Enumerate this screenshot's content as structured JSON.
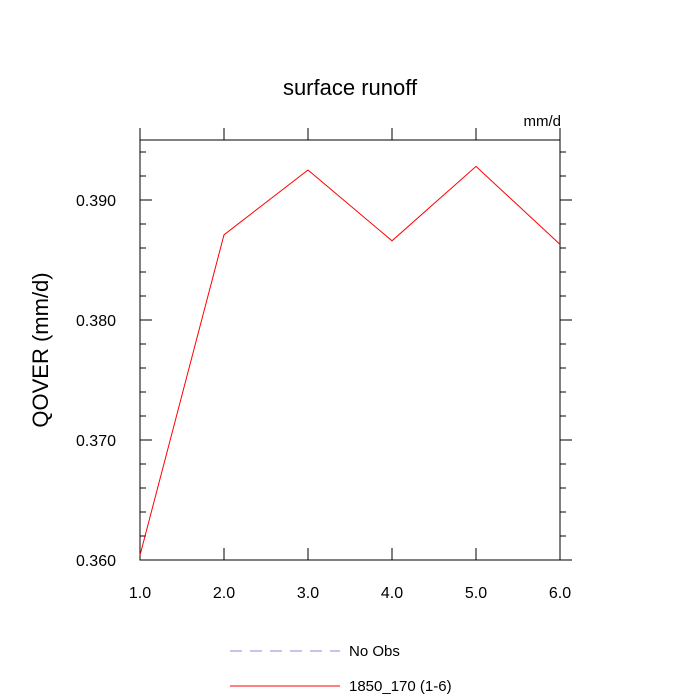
{
  "chart_data": {
    "type": "line",
    "title": "surface runoff",
    "units_label": "mm/d",
    "ylabel": "QOVER  (mm/d)",
    "xlabel": "",
    "xlim": [
      1.0,
      6.0
    ],
    "ylim": [
      0.36,
      0.395
    ],
    "x_ticks": [
      "1.0",
      "2.0",
      "3.0",
      "4.0",
      "5.0",
      "6.0"
    ],
    "y_ticks": [
      "0.360",
      "0.370",
      "0.380",
      "0.390"
    ],
    "grid": false,
    "legend_position": "bottom",
    "series": [
      {
        "name": "No Obs",
        "color": "#8888dd",
        "style": "dashed",
        "x": [],
        "y": []
      },
      {
        "name": "1850_170 (1-6)",
        "color": "#ff0000",
        "style": "solid",
        "x": [
          1,
          2,
          3,
          4,
          5,
          6
        ],
        "y": [
          0.3604,
          0.3871,
          0.3925,
          0.3866,
          0.3928,
          0.3863
        ]
      }
    ]
  }
}
